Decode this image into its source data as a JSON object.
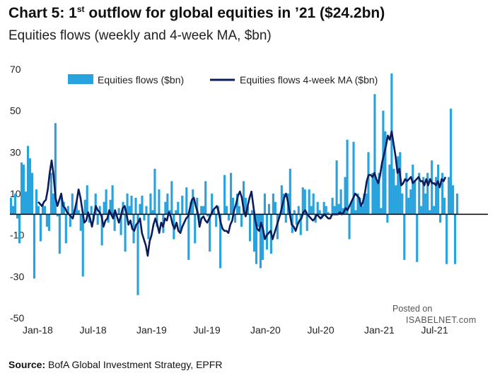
{
  "header": {
    "title_prefix": "Chart 5: 1",
    "title_sup": "st",
    "title_rest": " outflow for global equities in ’21 ($24.2bn)",
    "subtitle": "Equities flows (weekly and 4-week MA, $bn)"
  },
  "watermark": {
    "line1": "Posted on",
    "line2": "ISABELNET.com"
  },
  "source": {
    "label": "Source:",
    "text": "BofA Global Investment Strategy, EPFR"
  },
  "colors": {
    "bars": "#29A3DD",
    "ma_line": "#0B1C5C",
    "zero_line": "#111111"
  },
  "chart_data": {
    "type": "bar",
    "title": "",
    "xlabel": "",
    "ylabel": "",
    "ylim": [
      -50,
      70
    ],
    "yticks": [
      70,
      50,
      30,
      10,
      -10,
      -30,
      -50
    ],
    "xtick_labels": [
      "Jan-18",
      "Jul-18",
      "Jan-19",
      "Jul-19",
      "Jan-20",
      "Jul-20",
      "Jan-21",
      "Jul-21"
    ],
    "legend_position": "top",
    "series": [
      {
        "name": "Equities flows ($bn)",
        "type": "bar",
        "values": [
          8,
          4,
          10,
          -2,
          -14,
          25,
          24,
          11,
          33,
          27,
          20,
          -31,
          12,
          4,
          -13,
          5,
          4,
          -6,
          -8,
          20,
          10,
          44,
          -1,
          -19,
          8,
          6,
          -14,
          4,
          -6,
          10,
          2,
          6,
          2,
          -8,
          -30,
          7,
          14,
          -4,
          4,
          -3,
          10,
          -5,
          4,
          -15,
          6,
          12,
          -4,
          7,
          14,
          -8,
          0,
          3,
          -10,
          6,
          -18,
          10,
          4,
          9,
          -14,
          8,
          -39,
          5,
          9,
          -3,
          4,
          -12,
          10,
          2,
          22,
          -6,
          12,
          0,
          -9,
          6,
          10,
          2,
          16,
          -12,
          2,
          6,
          -9,
          9,
          0,
          13,
          -22,
          6,
          12,
          -14,
          8,
          -3,
          4,
          4,
          16,
          -1,
          -18,
          10,
          2,
          -6,
          4,
          -26,
          0,
          19,
          4,
          -3,
          20,
          8,
          -4,
          10,
          4,
          -6,
          16,
          8,
          4,
          -13,
          2,
          -18,
          -24,
          -6,
          -26,
          -22,
          10,
          -17,
          5,
          -19,
          10,
          6,
          -12,
          0,
          14,
          10,
          -4,
          10,
          22,
          -9,
          2,
          -5,
          4,
          -10,
          13,
          12,
          -8,
          12,
          4,
          10,
          -4,
          6,
          2,
          -2,
          6,
          4,
          1,
          0,
          8,
          4,
          26,
          5,
          12,
          3,
          18,
          36,
          -12,
          6,
          35,
          2,
          10,
          8,
          4,
          10,
          10,
          30,
          0,
          20,
          58,
          16,
          20,
          3,
          50,
          40,
          -4,
          24,
          68,
          22,
          14,
          28,
          30,
          10,
          -22,
          20,
          8,
          12,
          24,
          16,
          -23,
          20,
          4,
          18,
          10,
          20,
          2,
          26,
          4,
          18,
          24,
          -4,
          20,
          8,
          -24,
          18,
          51,
          14,
          -24,
          10
        ]
      },
      {
        "name": "Equities flows 4-week MA ($bn)",
        "type": "line",
        "values": [
          6,
          5,
          4,
          6,
          7,
          12,
          20,
          26,
          19,
          8,
          4,
          7,
          10,
          4,
          3,
          1,
          0,
          -1,
          -2,
          2,
          6,
          12,
          8,
          2,
          -4,
          -3,
          1,
          -2,
          -6,
          -1,
          4,
          2,
          1,
          -1,
          -6,
          -3,
          -2,
          2,
          0,
          -2,
          2,
          -1,
          -4,
          -1,
          3,
          4,
          0,
          -5,
          -3,
          -7,
          -8,
          -5,
          -4,
          -2,
          -9,
          -12,
          -15,
          -20,
          -13,
          -10,
          -5,
          -2,
          -5,
          -9,
          -4,
          -6,
          -2,
          -3,
          1,
          -1,
          -5,
          -7,
          -4,
          -8,
          -9,
          -6,
          -4,
          -2,
          -1,
          3,
          7,
          8,
          4,
          1,
          -6,
          -2,
          -1,
          -3,
          -4,
          -2,
          0,
          2,
          3,
          4,
          1,
          -4,
          -7,
          -8,
          -8,
          -9,
          -5,
          -3,
          2,
          5,
          9,
          11,
          8,
          2,
          -1,
          4,
          8,
          11,
          4,
          -3,
          -7,
          -8,
          -4,
          -7,
          -12,
          -10,
          -9,
          -8,
          -12,
          -9,
          -6,
          -3,
          0,
          4,
          8,
          10,
          6,
          0,
          -5,
          -6,
          -8,
          -5,
          -3,
          -2,
          1,
          2,
          0,
          -1,
          -2,
          -3,
          -2,
          0,
          -1,
          -2,
          -1,
          0,
          -1,
          -2,
          -2,
          0,
          0,
          0,
          0,
          1,
          0,
          1,
          3,
          2,
          4,
          6,
          8,
          10,
          9,
          8,
          4,
          6,
          10,
          16,
          19,
          19,
          18,
          20,
          17,
          15,
          19,
          25,
          29,
          33,
          38,
          36,
          40,
          34,
          28,
          20,
          22,
          14,
          15,
          17,
          16,
          17,
          18,
          15,
          16,
          17,
          18,
          16,
          16,
          14,
          17,
          14,
          17,
          15,
          15,
          14,
          16,
          13,
          17,
          16,
          18
        ]
      }
    ]
  }
}
